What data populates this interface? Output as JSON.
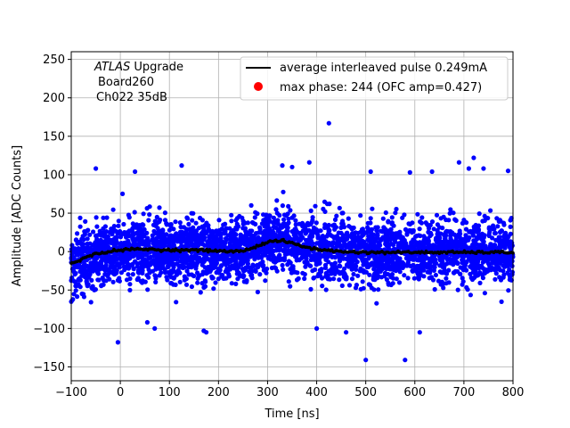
{
  "chart_data": {
    "type": "scatter",
    "title": "",
    "xlabel": "Time [ns]",
    "ylabel": "Amplitude [ADC Counts]",
    "xlim": [
      -100,
      800
    ],
    "ylim": [
      -168,
      260
    ],
    "xticks": [
      -100,
      0,
      100,
      200,
      300,
      400,
      500,
      600,
      700,
      800
    ],
    "xtick_labels": [
      "−100",
      "0",
      "100",
      "200",
      "300",
      "400",
      "500",
      "600",
      "700",
      "800"
    ],
    "yticks": [
      -150,
      -100,
      -50,
      0,
      50,
      100,
      150,
      200,
      250
    ],
    "ytick_labels": [
      "−150",
      "−100",
      "−50",
      "0",
      "50",
      "100",
      "150",
      "200",
      "250"
    ],
    "grid": true,
    "legend_position": "top-right",
    "annotation": {
      "line1_italic": "ATLAS",
      "line1_rest": " Upgrade",
      "line2": "Board260",
      "line3": "Ch022 35dB"
    },
    "series": [
      {
        "name": "average interleaved pulse 0.249mA",
        "kind": "line",
        "color": "#000000",
        "x": [
          -100,
          -75,
          -50,
          -25,
          0,
          25,
          50,
          100,
          150,
          200,
          230,
          250,
          270,
          290,
          310,
          330,
          350,
          370,
          400,
          450,
          500,
          600,
          700,
          800
        ],
        "y": [
          -15,
          -9,
          -3,
          0,
          2,
          3,
          3,
          2,
          2,
          1,
          0,
          1,
          5,
          10,
          14,
          14,
          11,
          7,
          3,
          0,
          -1,
          -1,
          -1,
          -1
        ]
      },
      {
        "name": "max phase: 244 (OFC amp=0.427)",
        "kind": "marker",
        "color": "#ff0000",
        "x": [],
        "y": []
      },
      {
        "name": "interleaved samples",
        "kind": "scatter",
        "color": "#0000ff",
        "noise_sigma": 20,
        "count": 3600,
        "outliers_x": [
          -50,
          -5,
          30,
          55,
          70,
          125,
          170,
          175,
          330,
          350,
          385,
          400,
          425,
          460,
          500,
          510,
          580,
          590,
          610,
          635,
          690,
          710,
          720,
          740,
          790
        ],
        "outliers_y": [
          108,
          -118,
          104,
          -92,
          -100,
          112,
          -103,
          -105,
          112,
          110,
          116,
          -100,
          167,
          -105,
          -141,
          104,
          -141,
          103,
          -105,
          104,
          116,
          108,
          122,
          108,
          105
        ]
      }
    ]
  }
}
